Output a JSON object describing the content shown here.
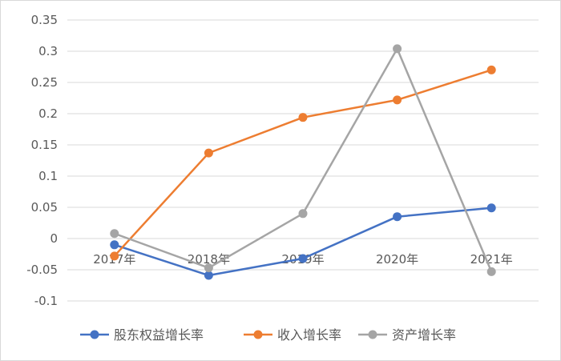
{
  "chart_data": {
    "type": "line",
    "title": "",
    "xlabel": "",
    "ylabel": "",
    "categories": [
      "2017年",
      "2018年",
      "2019年",
      "2020年",
      "2021年"
    ],
    "ylim": [
      -0.1,
      0.35
    ],
    "yticks": [
      "0.35",
      "0.3",
      "0.25",
      "0.2",
      "0.15",
      "0.1",
      "0.05",
      "0",
      "-0.05",
      "-0.1"
    ],
    "grid": true,
    "legend_position": "bottom",
    "series": [
      {
        "name": "股东权益增长率",
        "color": "#4472C4",
        "values": [
          -0.01,
          -0.059,
          -0.032,
          0.035,
          0.049
        ]
      },
      {
        "name": "收入增长率",
        "color": "#ED7D31",
        "values": [
          -0.028,
          0.137,
          0.194,
          0.222,
          0.27
        ]
      },
      {
        "name": "资产增长率",
        "color": "#A5A5A5",
        "values": [
          0.008,
          -0.047,
          0.04,
          0.304,
          -0.053
        ]
      }
    ]
  }
}
